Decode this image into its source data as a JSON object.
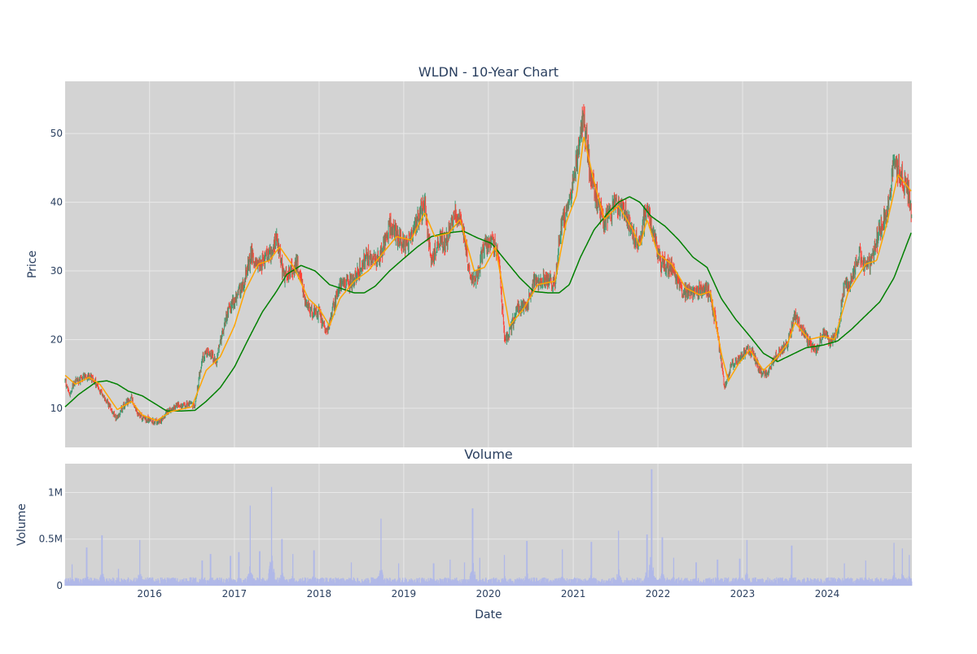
{
  "colors": {
    "plot_bg": "#d3d3d3",
    "grid": "#e8e8e8",
    "increasing": "#3d9970",
    "decreasing": "#ff4136",
    "ma_short": "#ffa500",
    "ma_long": "#008000",
    "volume": "#b0b8e8",
    "text": "#2a3f5f"
  },
  "chart_data": [
    {
      "type": "candlestick",
      "title": "WLDN - 10-Year Chart",
      "xlabel": "",
      "ylabel": "Price",
      "xlim": [
        "2015-01-02",
        "2024-12-31"
      ],
      "ylim": [
        4.3,
        57.6
      ],
      "xticks": [
        "2016",
        "2017",
        "2018",
        "2019",
        "2020",
        "2021",
        "2022",
        "2023",
        "2024"
      ],
      "yticks": [
        10,
        20,
        30,
        40,
        50
      ],
      "grid": true,
      "legend": "none",
      "price_anchors": [
        [
          "2015-01-02",
          14.0
        ],
        [
          "2015-01-20",
          12.0
        ],
        [
          "2015-02-15",
          14.0
        ],
        [
          "2015-04-01",
          14.5
        ],
        [
          "2015-05-01",
          14.5
        ],
        [
          "2015-06-01",
          12.5
        ],
        [
          "2015-07-01",
          11.0
        ],
        [
          "2015-08-10",
          8.5
        ],
        [
          "2015-09-15",
          10.5
        ],
        [
          "2015-10-15",
          11.5
        ],
        [
          "2015-11-10",
          9.0
        ],
        [
          "2016-01-01",
          8.2
        ],
        [
          "2016-02-15",
          8.0
        ],
        [
          "2016-03-15",
          9.5
        ],
        [
          "2016-05-01",
          10.5
        ],
        [
          "2016-07-15",
          10.5
        ],
        [
          "2016-08-15",
          17.5
        ],
        [
          "2016-09-15",
          18.0
        ],
        [
          "2016-10-15",
          17.0
        ],
        [
          "2016-12-01",
          24.0
        ],
        [
          "2017-01-15",
          26.5
        ],
        [
          "2017-02-15",
          29.0
        ],
        [
          "2017-03-15",
          32.5
        ],
        [
          "2017-04-15",
          31.0
        ],
        [
          "2017-06-01",
          32.0
        ],
        [
          "2017-07-01",
          35.0
        ],
        [
          "2017-08-01",
          29.0
        ],
        [
          "2017-10-01",
          31.0
        ],
        [
          "2017-11-01",
          25.5
        ],
        [
          "2017-12-01",
          24.0
        ],
        [
          "2018-01-01",
          24.0
        ],
        [
          "2018-02-01",
          21.0
        ],
        [
          "2018-04-01",
          28.0
        ],
        [
          "2018-06-01",
          28.5
        ],
        [
          "2018-07-15",
          32.0
        ],
        [
          "2018-09-01",
          31.5
        ],
        [
          "2018-10-01",
          33.0
        ],
        [
          "2018-11-01",
          37.0
        ],
        [
          "2018-12-01",
          35.0
        ],
        [
          "2019-01-15",
          33.5
        ],
        [
          "2019-03-01",
          37.5
        ],
        [
          "2019-04-01",
          39.5
        ],
        [
          "2019-05-01",
          31.5
        ],
        [
          "2019-06-01",
          34.5
        ],
        [
          "2019-07-01",
          34.0
        ],
        [
          "2019-08-15",
          38.5
        ],
        [
          "2019-09-15",
          36.0
        ],
        [
          "2019-10-15",
          28.5
        ],
        [
          "2019-11-15",
          29.0
        ],
        [
          "2019-12-15",
          34.0
        ],
        [
          "2020-01-15",
          34.5
        ],
        [
          "2020-02-15",
          32.0
        ],
        [
          "2020-03-10",
          20.0
        ],
        [
          "2020-04-01",
          21.0
        ],
        [
          "2020-05-01",
          24.5
        ],
        [
          "2020-06-15",
          25.0
        ],
        [
          "2020-07-15",
          28.5
        ],
        [
          "2020-09-01",
          29.0
        ],
        [
          "2020-10-15",
          28.0
        ],
        [
          "2020-11-10",
          37.0
        ],
        [
          "2020-12-10",
          38.5
        ],
        [
          "2021-01-15",
          46.0
        ],
        [
          "2021-02-15",
          52.0
        ],
        [
          "2021-03-15",
          44.0
        ],
        [
          "2021-04-15",
          40.0
        ],
        [
          "2021-05-15",
          37.0
        ],
        [
          "2021-07-01",
          39.5
        ],
        [
          "2021-08-15",
          38.0
        ],
        [
          "2021-09-15",
          35.0
        ],
        [
          "2021-10-15",
          34.0
        ],
        [
          "2021-11-15",
          40.0
        ],
        [
          "2021-12-15",
          35.0
        ],
        [
          "2022-01-15",
          31.0
        ],
        [
          "2022-03-01",
          30.5
        ],
        [
          "2022-04-15",
          27.0
        ],
        [
          "2022-06-01",
          26.5
        ],
        [
          "2022-07-15",
          27.5
        ],
        [
          "2022-08-15",
          26.5
        ],
        [
          "2022-09-15",
          21.0
        ],
        [
          "2022-10-15",
          13.0
        ],
        [
          "2022-11-15",
          16.5
        ],
        [
          "2022-12-15",
          17.0
        ],
        [
          "2023-01-15",
          18.5
        ],
        [
          "2023-02-15",
          18.0
        ],
        [
          "2023-03-15",
          15.5
        ],
        [
          "2023-04-15",
          15.0
        ],
        [
          "2023-05-15",
          17.0
        ],
        [
          "2023-06-15",
          18.5
        ],
        [
          "2023-07-15",
          19.5
        ],
        [
          "2023-08-15",
          23.5
        ],
        [
          "2023-09-15",
          21.5
        ],
        [
          "2023-10-15",
          19.5
        ],
        [
          "2023-11-15",
          18.5
        ],
        [
          "2023-12-15",
          21.0
        ],
        [
          "2024-01-15",
          19.5
        ],
        [
          "2024-02-15",
          21.0
        ],
        [
          "2024-03-15",
          28.0
        ],
        [
          "2024-04-15",
          28.5
        ],
        [
          "2024-05-15",
          32.5
        ],
        [
          "2024-06-15",
          30.5
        ],
        [
          "2024-07-15",
          32.0
        ],
        [
          "2024-08-15",
          36.0
        ],
        [
          "2024-09-15",
          39.0
        ],
        [
          "2024-10-15",
          45.5
        ],
        [
          "2024-11-15",
          44.0
        ],
        [
          "2024-12-15",
          41.0
        ],
        [
          "2024-12-31",
          38.5
        ]
      ],
      "ma_short_anchors": [
        [
          "2015-01-02",
          14.8
        ],
        [
          "2015-02-15",
          13.5
        ],
        [
          "2015-04-15",
          14.5
        ],
        [
          "2015-06-01",
          13.5
        ],
        [
          "2015-08-15",
          9.8
        ],
        [
          "2015-10-15",
          11.0
        ],
        [
          "2015-12-01",
          9.0
        ],
        [
          "2016-02-01",
          8.2
        ],
        [
          "2016-04-01",
          9.5
        ],
        [
          "2016-07-01",
          10.2
        ],
        [
          "2016-09-01",
          15.5
        ],
        [
          "2016-11-01",
          17.5
        ],
        [
          "2017-01-01",
          22.0
        ],
        [
          "2017-02-15",
          27.0
        ],
        [
          "2017-04-15",
          31.0
        ],
        [
          "2017-06-01",
          31.5
        ],
        [
          "2017-07-15",
          33.5
        ],
        [
          "2017-09-15",
          30.5
        ],
        [
          "2017-11-15",
          26.0
        ],
        [
          "2018-01-01",
          24.5
        ],
        [
          "2018-02-15",
          22.0
        ],
        [
          "2018-04-01",
          26.0
        ],
        [
          "2018-06-01",
          28.5
        ],
        [
          "2018-08-01",
          30.0
        ],
        [
          "2018-10-01",
          32.5
        ],
        [
          "2018-12-01",
          35.0
        ],
        [
          "2019-02-01",
          34.5
        ],
        [
          "2019-04-01",
          38.5
        ],
        [
          "2019-05-15",
          35.0
        ],
        [
          "2019-07-15",
          35.5
        ],
        [
          "2019-09-01",
          37.5
        ],
        [
          "2019-11-01",
          30.0
        ],
        [
          "2019-12-15",
          30.5
        ],
        [
          "2020-02-01",
          33.5
        ],
        [
          "2020-04-01",
          22.0
        ],
        [
          "2020-06-01",
          24.5
        ],
        [
          "2020-08-01",
          28.0
        ],
        [
          "2020-10-15",
          28.5
        ],
        [
          "2020-12-01",
          37.0
        ],
        [
          "2021-01-15",
          41.0
        ],
        [
          "2021-02-15",
          49.5
        ],
        [
          "2021-04-01",
          43.0
        ],
        [
          "2021-05-15",
          37.5
        ],
        [
          "2021-07-15",
          39.5
        ],
        [
          "2021-09-15",
          36.0
        ],
        [
          "2021-10-15",
          33.5
        ],
        [
          "2021-11-15",
          37.5
        ],
        [
          "2022-01-01",
          32.5
        ],
        [
          "2022-03-01",
          31.0
        ],
        [
          "2022-05-01",
          27.5
        ],
        [
          "2022-07-01",
          26.5
        ],
        [
          "2022-08-15",
          27.0
        ],
        [
          "2022-10-01",
          18.0
        ],
        [
          "2022-11-01",
          14.0
        ],
        [
          "2022-12-15",
          16.5
        ],
        [
          "2023-02-01",
          18.5
        ],
        [
          "2023-04-01",
          15.5
        ],
        [
          "2023-06-01",
          17.5
        ],
        [
          "2023-07-15",
          19.5
        ],
        [
          "2023-08-15",
          22.5
        ],
        [
          "2023-10-15",
          20.0
        ],
        [
          "2023-12-15",
          20.5
        ],
        [
          "2024-02-01",
          20.0
        ],
        [
          "2024-04-01",
          27.0
        ],
        [
          "2024-06-15",
          31.0
        ],
        [
          "2024-08-01",
          31.5
        ],
        [
          "2024-09-15",
          37.0
        ],
        [
          "2024-11-01",
          44.0
        ],
        [
          "2024-12-31",
          41.5
        ]
      ],
      "ma_long_anchors": [
        [
          "2015-01-02",
          10.2
        ],
        [
          "2015-03-01",
          12.0
        ],
        [
          "2015-05-15",
          13.8
        ],
        [
          "2015-07-01",
          14.0
        ],
        [
          "2015-08-15",
          13.5
        ],
        [
          "2015-10-01",
          12.5
        ],
        [
          "2015-12-01",
          11.8
        ],
        [
          "2016-02-01",
          10.5
        ],
        [
          "2016-03-15",
          9.6
        ],
        [
          "2016-05-15",
          9.6
        ],
        [
          "2016-07-15",
          9.7
        ],
        [
          "2016-09-01",
          11.0
        ],
        [
          "2016-11-01",
          13.0
        ],
        [
          "2017-01-01",
          16.0
        ],
        [
          "2017-03-01",
          20.0
        ],
        [
          "2017-05-01",
          24.0
        ],
        [
          "2017-07-01",
          27.0
        ],
        [
          "2017-08-15",
          29.5
        ],
        [
          "2017-10-15",
          30.8
        ],
        [
          "2017-12-15",
          30.0
        ],
        [
          "2018-02-15",
          28.0
        ],
        [
          "2018-04-01",
          27.5
        ],
        [
          "2018-06-01",
          26.8
        ],
        [
          "2018-07-15",
          26.8
        ],
        [
          "2018-09-01",
          27.8
        ],
        [
          "2018-11-01",
          30.0
        ],
        [
          "2019-01-01",
          31.8
        ],
        [
          "2019-03-01",
          33.5
        ],
        [
          "2019-05-01",
          35.0
        ],
        [
          "2019-07-01",
          35.5
        ],
        [
          "2019-09-15",
          35.8
        ],
        [
          "2019-11-15",
          34.8
        ],
        [
          "2020-01-15",
          34.0
        ],
        [
          "2020-03-15",
          31.5
        ],
        [
          "2020-05-15",
          29.0
        ],
        [
          "2020-07-15",
          27.0
        ],
        [
          "2020-09-15",
          26.8
        ],
        [
          "2020-11-01",
          26.8
        ],
        [
          "2020-12-15",
          28.0
        ],
        [
          "2021-02-01",
          32.0
        ],
        [
          "2021-04-01",
          36.0
        ],
        [
          "2021-06-01",
          38.5
        ],
        [
          "2021-07-15",
          40.0
        ],
        [
          "2021-09-01",
          40.8
        ],
        [
          "2021-10-15",
          40.0
        ],
        [
          "2021-12-01",
          38.0
        ],
        [
          "2022-02-01",
          36.5
        ],
        [
          "2022-04-01",
          34.5
        ],
        [
          "2022-06-01",
          32.0
        ],
        [
          "2022-08-01",
          30.5
        ],
        [
          "2022-10-01",
          26.0
        ],
        [
          "2022-12-01",
          23.0
        ],
        [
          "2023-02-01",
          20.5
        ],
        [
          "2023-04-01",
          18.0
        ],
        [
          "2023-06-01",
          16.8
        ],
        [
          "2023-08-01",
          17.8
        ],
        [
          "2023-10-01",
          18.8
        ],
        [
          "2023-12-15",
          19.2
        ],
        [
          "2024-02-15",
          19.8
        ],
        [
          "2024-04-15",
          21.5
        ],
        [
          "2024-06-15",
          23.5
        ],
        [
          "2024-08-15",
          25.5
        ],
        [
          "2024-10-15",
          29.0
        ],
        [
          "2024-12-31",
          35.8
        ]
      ]
    },
    {
      "type": "bar",
      "title": "Volume",
      "xlabel": "Date",
      "ylabel": "Volume",
      "xlim": [
        "2015-01-02",
        "2024-12-31"
      ],
      "ylim": [
        0,
        1310000
      ],
      "yticks": [
        0,
        500000,
        1000000
      ],
      "ytick_labels": [
        "0",
        "0.5M",
        "1M"
      ],
      "grid": true,
      "volume_baseline": 60000,
      "volume_spikes": [
        [
          "2015-02-01",
          230000
        ],
        [
          "2015-04-05",
          410000
        ],
        [
          "2015-06-10",
          540000
        ],
        [
          "2015-08-20",
          180000
        ],
        [
          "2015-11-20",
          490000
        ],
        [
          "2016-08-15",
          270000
        ],
        [
          "2016-09-20",
          340000
        ],
        [
          "2016-12-15",
          320000
        ],
        [
          "2017-01-20",
          360000
        ],
        [
          "2017-03-10",
          860000
        ],
        [
          "2017-04-20",
          370000
        ],
        [
          "2017-06-10",
          1060000
        ],
        [
          "2017-07-25",
          500000
        ],
        [
          "2017-09-10",
          340000
        ],
        [
          "2017-12-10",
          380000
        ],
        [
          "2018-05-20",
          250000
        ],
        [
          "2018-09-25",
          720000
        ],
        [
          "2018-12-10",
          240000
        ],
        [
          "2019-05-10",
          240000
        ],
        [
          "2019-07-20",
          280000
        ],
        [
          "2019-09-20",
          250000
        ],
        [
          "2019-10-25",
          830000
        ],
        [
          "2019-11-25",
          300000
        ],
        [
          "2020-03-10",
          330000
        ],
        [
          "2020-06-15",
          480000
        ],
        [
          "2020-11-15",
          390000
        ],
        [
          "2021-03-20",
          470000
        ],
        [
          "2021-07-15",
          590000
        ],
        [
          "2021-11-15",
          550000
        ],
        [
          "2021-12-05",
          1250000
        ],
        [
          "2022-01-20",
          520000
        ],
        [
          "2022-03-10",
          300000
        ],
        [
          "2022-06-15",
          250000
        ],
        [
          "2022-09-15",
          280000
        ],
        [
          "2022-12-20",
          290000
        ],
        [
          "2023-01-20",
          490000
        ],
        [
          "2023-08-01",
          430000
        ],
        [
          "2024-03-15",
          240000
        ],
        [
          "2024-06-15",
          270000
        ],
        [
          "2024-10-15",
          460000
        ],
        [
          "2024-11-20",
          400000
        ],
        [
          "2024-12-20",
          330000
        ]
      ]
    }
  ]
}
